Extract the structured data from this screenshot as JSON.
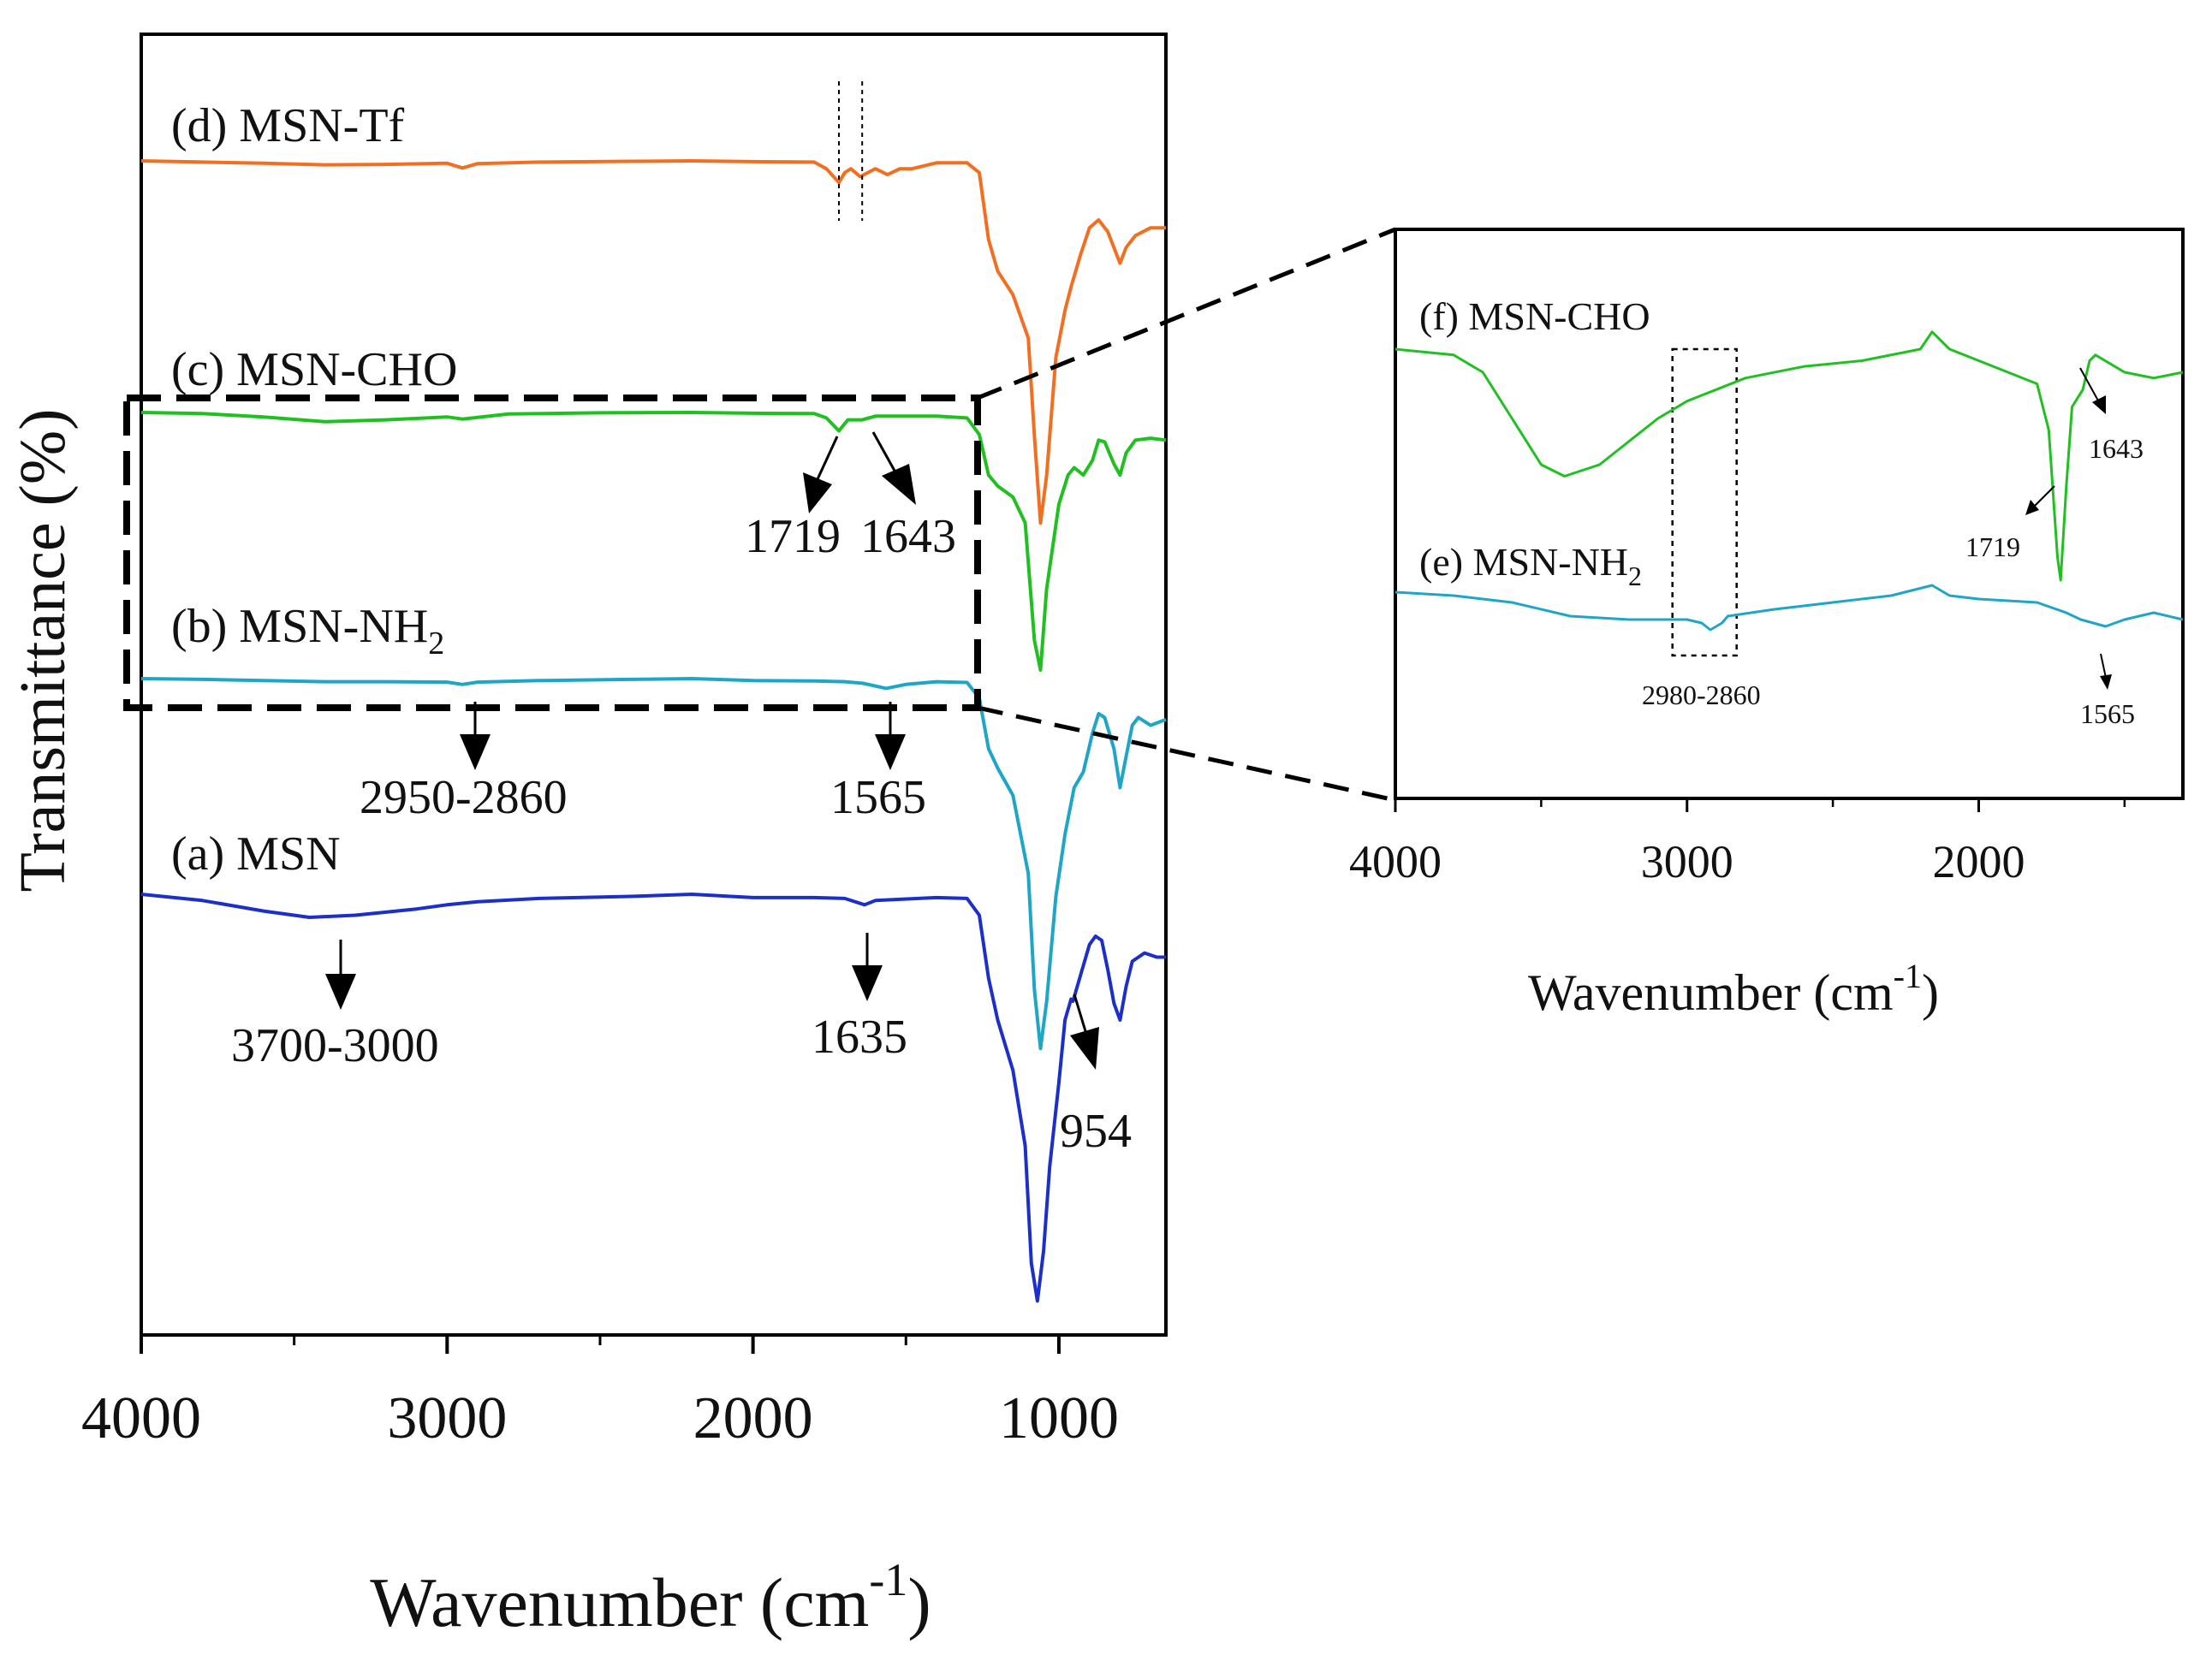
{
  "chart_data": [
    {
      "type": "line",
      "xlabel": "Wavenumber (cm",
      "xlabel_sup": "-1",
      "xlabel_close": ")",
      "ylabel": "Transmittance (%)",
      "xlim": [
        4000,
        650
      ],
      "x_reversed": true,
      "x_ticks": [
        {
          "value": 4000,
          "label": "4000"
        },
        {
          "value": 3000,
          "label": "3000"
        },
        {
          "value": 2000,
          "label": "2000"
        },
        {
          "value": 1000,
          "label": "1000"
        }
      ],
      "series": [
        {
          "name": "(d) MSN-Tf",
          "color": "#f26f21",
          "points": [
            [
              4000,
              0.0
            ],
            [
              3800,
              0.3
            ],
            [
              3600,
              0.6
            ],
            [
              3400,
              1.0
            ],
            [
              3200,
              0.9
            ],
            [
              3000,
              0.6
            ],
            [
              2950,
              1.8
            ],
            [
              2900,
              0.7
            ],
            [
              2700,
              0.3
            ],
            [
              2400,
              0.1
            ],
            [
              2200,
              0.0
            ],
            [
              2000,
              0.2
            ],
            [
              1800,
              0.3
            ],
            [
              1760,
              2.0
            ],
            [
              1719,
              5.5
            ],
            [
              1700,
              3.0
            ],
            [
              1680,
              2.0
            ],
            [
              1650,
              4.0
            ],
            [
              1600,
              2.0
            ],
            [
              1560,
              3.5
            ],
            [
              1520,
              2.0
            ],
            [
              1480,
              2.0
            ],
            [
              1400,
              0.5
            ],
            [
              1300,
              0.5
            ],
            [
              1260,
              3.0
            ],
            [
              1230,
              20.0
            ],
            [
              1200,
              28.0
            ],
            [
              1150,
              34.0
            ],
            [
              1100,
              45.0
            ],
            [
              1080,
              70.0
            ],
            [
              1060,
              92.0
            ],
            [
              1040,
              80.0
            ],
            [
              1010,
              50.0
            ],
            [
              980,
              38.0
            ],
            [
              960,
              32.0
            ],
            [
              930,
              24.0
            ],
            [
              900,
              17.0
            ],
            [
              870,
              15.0
            ],
            [
              840,
              18.0
            ],
            [
              800,
              26.0
            ],
            [
              780,
              22.0
            ],
            [
              750,
              19.0
            ],
            [
              700,
              17.0
            ],
            [
              650,
              17.0
            ]
          ]
        },
        {
          "name": "(c) MSN-CHO",
          "color": "#21c021",
          "points": [
            [
              4000,
              0.0
            ],
            [
              3800,
              0.3
            ],
            [
              3600,
              1.2
            ],
            [
              3400,
              2.5
            ],
            [
              3200,
              2.0
            ],
            [
              3000,
              1.2
            ],
            [
              2950,
              1.8
            ],
            [
              2800,
              0.4
            ],
            [
              2500,
              0.1
            ],
            [
              2200,
              0.0
            ],
            [
              2000,
              0.2
            ],
            [
              1800,
              0.3
            ],
            [
              1760,
              1.5
            ],
            [
              1719,
              5.0
            ],
            [
              1690,
              2.0
            ],
            [
              1643,
              2.0
            ],
            [
              1600,
              1.0
            ],
            [
              1500,
              1.0
            ],
            [
              1400,
              1.0
            ],
            [
              1300,
              1.5
            ],
            [
              1260,
              6.0
            ],
            [
              1230,
              17.0
            ],
            [
              1200,
              20.0
            ],
            [
              1150,
              23.0
            ],
            [
              1110,
              30.0
            ],
            [
              1080,
              62.0
            ],
            [
              1060,
              70.0
            ],
            [
              1040,
              48.0
            ],
            [
              1000,
              25.0
            ],
            [
              970,
              17.0
            ],
            [
              950,
              15.0
            ],
            [
              920,
              17.0
            ],
            [
              890,
              13.0
            ],
            [
              870,
              7.5
            ],
            [
              850,
              8.0
            ],
            [
              820,
              14.0
            ],
            [
              800,
              17.0
            ],
            [
              780,
              11.0
            ],
            [
              750,
              7.5
            ],
            [
              700,
              7.0
            ],
            [
              650,
              7.5
            ]
          ]
        },
        {
          "name": "(b) MSN-NH2",
          "color": "#1fa6c6",
          "points": [
            [
              4000,
              0.0
            ],
            [
              3800,
              0.2
            ],
            [
              3600,
              0.5
            ],
            [
              3400,
              0.8
            ],
            [
              3200,
              0.8
            ],
            [
              3000,
              0.9
            ],
            [
              2950,
              1.5
            ],
            [
              2900,
              0.9
            ],
            [
              2700,
              0.5
            ],
            [
              2400,
              0.2
            ],
            [
              2200,
              0.0
            ],
            [
              2000,
              0.5
            ],
            [
              1800,
              0.6
            ],
            [
              1700,
              0.8
            ],
            [
              1640,
              1.2
            ],
            [
              1565,
              2.5
            ],
            [
              1500,
              1.5
            ],
            [
              1400,
              0.8
            ],
            [
              1300,
              1.0
            ],
            [
              1260,
              5.0
            ],
            [
              1230,
              18.0
            ],
            [
              1200,
              23.0
            ],
            [
              1150,
              30.0
            ],
            [
              1100,
              50.0
            ],
            [
              1080,
              80.0
            ],
            [
              1060,
              95.0
            ],
            [
              1040,
              83.0
            ],
            [
              1010,
              56.0
            ],
            [
              980,
              40.0
            ],
            [
              950,
              28.0
            ],
            [
              920,
              24.0
            ],
            [
              890,
              14.0
            ],
            [
              870,
              9.0
            ],
            [
              850,
              10.0
            ],
            [
              820,
              18.0
            ],
            [
              800,
              28.0
            ],
            [
              780,
              20.0
            ],
            [
              760,
              12.0
            ],
            [
              740,
              10.0
            ],
            [
              700,
              12.0
            ],
            [
              650,
              10.5
            ]
          ]
        },
        {
          "name": "(a) MSN",
          "color": "#1c2fc9",
          "points": [
            [
              4000,
              0.0
            ],
            [
              3800,
              1.5
            ],
            [
              3600,
              4.0
            ],
            [
              3450,
              5.5
            ],
            [
              3300,
              5.0
            ],
            [
              3100,
              3.5
            ],
            [
              3000,
              2.5
            ],
            [
              2900,
              1.8
            ],
            [
              2700,
              1.0
            ],
            [
              2400,
              0.5
            ],
            [
              2200,
              0.0
            ],
            [
              2000,
              0.8
            ],
            [
              1800,
              0.8
            ],
            [
              1700,
              1.0
            ],
            [
              1635,
              2.5
            ],
            [
              1600,
              1.5
            ],
            [
              1400,
              0.8
            ],
            [
              1300,
              1.0
            ],
            [
              1260,
              5.0
            ],
            [
              1230,
              20.0
            ],
            [
              1200,
              30.0
            ],
            [
              1150,
              42.0
            ],
            [
              1110,
              60.0
            ],
            [
              1090,
              88.0
            ],
            [
              1070,
              97.0
            ],
            [
              1050,
              85.0
            ],
            [
              1030,
              65.0
            ],
            [
              1000,
              45.0
            ],
            [
              980,
              30.0
            ],
            [
              960,
              25.0
            ],
            [
              954,
              25.5
            ],
            [
              940,
              22.0
            ],
            [
              900,
              12.0
            ],
            [
              880,
              10.0
            ],
            [
              860,
              11.0
            ],
            [
              840,
              18.0
            ],
            [
              820,
              26.0
            ],
            [
              800,
              30.0
            ],
            [
              780,
              22.0
            ],
            [
              760,
              16.0
            ],
            [
              720,
              14.0
            ],
            [
              680,
              15.0
            ],
            [
              650,
              15.0
            ]
          ]
        }
      ],
      "series_labels": [
        {
          "prefix": "(d) MSN-Tf",
          "sub": ""
        },
        {
          "prefix": "(c) MSN-CHO",
          "sub": ""
        },
        {
          "prefix": "(b) MSN-NH",
          "sub": "2"
        },
        {
          "prefix": "(a) MSN",
          "sub": ""
        }
      ],
      "annotations": [
        {
          "text": "1719",
          "x": 1719
        },
        {
          "text": "1643",
          "x": 1643
        },
        {
          "text": "2950-2860",
          "x": 2905
        },
        {
          "text": "1565",
          "x": 1565
        },
        {
          "text": "3700-3000",
          "x": 3350
        },
        {
          "text": "1635",
          "x": 1635
        },
        {
          "text": "954",
          "x": 954
        }
      ],
      "zoom_region": {
        "x_from": 4000,
        "x_to": 1280,
        "series": [
          "(c) MSN-CHO",
          "(b) MSN-NH2"
        ]
      },
      "dotted_lines_x": [
        1719,
        1643
      ]
    },
    {
      "type": "line",
      "xlabel": "Wavenumber (cm",
      "xlabel_sup": "-1",
      "xlabel_close": ")",
      "xlim": [
        4000,
        1300
      ],
      "x_reversed": true,
      "x_ticks": [
        {
          "value": 4000,
          "label": "4000"
        },
        {
          "value": 3000,
          "label": "3000"
        },
        {
          "value": 2000,
          "label": "2000"
        }
      ],
      "series": [
        {
          "name": "(f) MSN-CHO",
          "color": "#21c021",
          "points": [
            [
              4000,
              0.0
            ],
            [
              3800,
              0.5
            ],
            [
              3700,
              2.0
            ],
            [
              3600,
              6.0
            ],
            [
              3500,
              10.0
            ],
            [
              3420,
              11.0
            ],
            [
              3300,
              10.0
            ],
            [
              3200,
              8.0
            ],
            [
              3100,
              6.0
            ],
            [
              3000,
              4.5
            ],
            [
              2950,
              4.0
            ],
            [
              2900,
              3.5
            ],
            [
              2800,
              2.5
            ],
            [
              2600,
              1.5
            ],
            [
              2400,
              1.0
            ],
            [
              2200,
              0.0
            ],
            [
              2160,
              -1.5
            ],
            [
              2100,
              0.0
            ],
            [
              2000,
              1.0
            ],
            [
              1900,
              2.0
            ],
            [
              1800,
              3.0
            ],
            [
              1760,
              7.0
            ],
            [
              1730,
              18.0
            ],
            [
              1719,
              20.0
            ],
            [
              1700,
              12.0
            ],
            [
              1680,
              5.0
            ],
            [
              1643,
              3.5
            ],
            [
              1620,
              1.0
            ],
            [
              1600,
              0.5
            ],
            [
              1500,
              2.0
            ],
            [
              1400,
              2.5
            ],
            [
              1300,
              2.0
            ]
          ]
        },
        {
          "name": "(e) MSN-NH2",
          "color": "#1fa6c6",
          "points": [
            [
              4000,
              0.0
            ],
            [
              3800,
              0.5
            ],
            [
              3600,
              1.5
            ],
            [
              3400,
              3.5
            ],
            [
              3200,
              4.0
            ],
            [
              3000,
              4.0
            ],
            [
              2950,
              4.5
            ],
            [
              2920,
              5.5
            ],
            [
              2880,
              4.5
            ],
            [
              2860,
              3.5
            ],
            [
              2700,
              2.5
            ],
            [
              2500,
              1.5
            ],
            [
              2300,
              0.5
            ],
            [
              2160,
              -1.0
            ],
            [
              2100,
              0.5
            ],
            [
              2000,
              1.0
            ],
            [
              1800,
              1.5
            ],
            [
              1700,
              3.0
            ],
            [
              1650,
              4.0
            ],
            [
              1565,
              5.0
            ],
            [
              1500,
              4.0
            ],
            [
              1400,
              3.0
            ],
            [
              1300,
              4.0
            ]
          ]
        }
      ],
      "series_labels": [
        {
          "prefix": "(f) MSN-CHO",
          "sub": ""
        },
        {
          "prefix": "(e) MSN-NH",
          "sub": "2"
        }
      ],
      "annotations": [
        {
          "text": "1643",
          "x": 1643
        },
        {
          "text": "1719",
          "x": 1719
        },
        {
          "text": "2980-2860",
          "x": 2920
        },
        {
          "text": "1565",
          "x": 1565
        }
      ],
      "highlight_box": {
        "x_from": 3050,
        "x_to": 2830
      }
    }
  ]
}
